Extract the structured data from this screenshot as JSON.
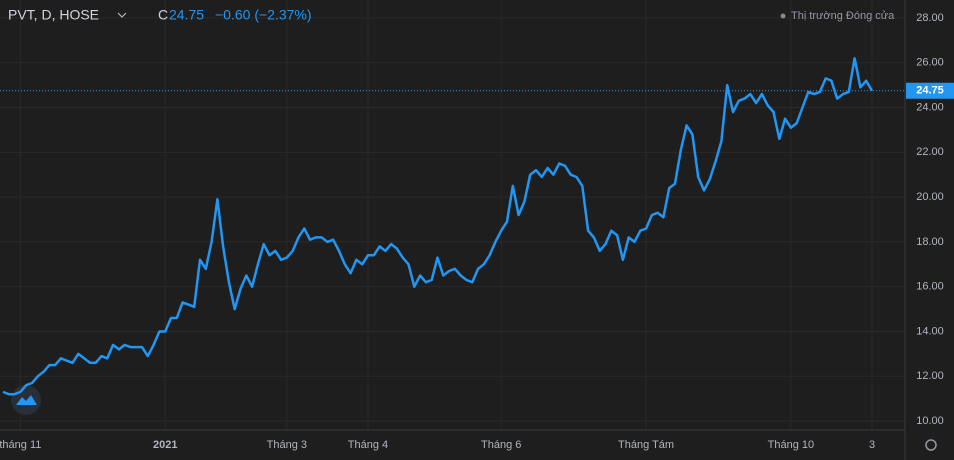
{
  "chart_data": {
    "type": "line",
    "title": "PVT, D, HOSE",
    "close_prefix": "C",
    "change_text": "−0.60 (−2.37%)",
    "market_status": "Thị trường Đóng cửa",
    "categories": [
      null,
      null,
      null,
      "tháng 11",
      null,
      null,
      null,
      null,
      null,
      null,
      null,
      null,
      null,
      null,
      null,
      null,
      null,
      null,
      null,
      null,
      null,
      null,
      null,
      null,
      null,
      null,
      null,
      null,
      "2021",
      null,
      null,
      null,
      null,
      null,
      null,
      null,
      null,
      null,
      null,
      null,
      null,
      null,
      null,
      null,
      null,
      null,
      null,
      null,
      null,
      "Tháng 3",
      null,
      null,
      null,
      null,
      null,
      null,
      null,
      null,
      null,
      null,
      null,
      null,
      null,
      "Tháng 4",
      null,
      null,
      null,
      null,
      null,
      null,
      null,
      null,
      null,
      null,
      null,
      null,
      null,
      null,
      null,
      null,
      null,
      null,
      null,
      null,
      null,
      null,
      "Tháng 6",
      null,
      null,
      null,
      null,
      null,
      null,
      null,
      null,
      null,
      null,
      null,
      null,
      null,
      null,
      null,
      null,
      null,
      null,
      null,
      null,
      null,
      null,
      null,
      null,
      "Tháng Tám",
      null,
      null,
      null,
      null,
      null,
      null,
      null,
      null,
      null,
      null,
      null,
      null,
      null,
      null,
      null,
      null,
      null,
      null,
      null,
      null,
      null,
      null,
      null,
      null,
      "Tháng 10",
      null,
      null,
      null,
      null,
      null,
      null,
      null,
      null,
      null,
      null,
      null,
      null,
      null,
      "3"
    ],
    "series": [
      {
        "color": "#2196f3",
        "values": [
          11.3,
          11.2,
          11.2,
          11.3,
          11.6,
          11.7,
          12.0,
          12.2,
          12.5,
          12.5,
          12.8,
          12.7,
          12.6,
          13.0,
          12.8,
          12.6,
          12.6,
          12.9,
          12.8,
          13.4,
          13.2,
          13.4,
          13.3,
          13.3,
          13.3,
          12.9,
          13.4,
          14.0,
          14.0,
          14.6,
          14.6,
          15.3,
          15.2,
          15.1,
          17.2,
          16.8,
          18.0,
          19.9,
          17.8,
          16.2,
          15.0,
          15.9,
          16.5,
          16.0,
          17.0,
          17.9,
          17.4,
          17.6,
          17.2,
          17.3,
          17.6,
          18.2,
          18.6,
          18.1,
          18.2,
          18.2,
          18.0,
          18.1,
          17.6,
          17.0,
          16.6,
          17.2,
          17.0,
          17.4,
          17.4,
          17.8,
          17.6,
          17.9,
          17.7,
          17.3,
          17.0,
          16.0,
          16.5,
          16.2,
          16.3,
          17.3,
          16.5,
          16.7,
          16.8,
          16.5,
          16.3,
          16.2,
          16.8,
          17.0,
          17.4,
          18.0,
          18.5,
          18.9,
          20.5,
          19.2,
          19.8,
          21.0,
          21.2,
          20.9,
          21.3,
          21.0,
          21.5,
          21.4,
          21.0,
          20.9,
          20.5,
          18.5,
          18.2,
          17.6,
          17.9,
          18.5,
          18.3,
          17.2,
          18.2,
          18.0,
          18.5,
          18.6,
          19.2,
          19.3,
          19.1,
          20.4,
          20.6,
          22.1,
          23.2,
          22.8,
          20.9,
          20.3,
          20.8,
          21.6,
          22.5,
          25.0,
          23.8,
          24.3,
          24.4,
          24.6,
          24.2,
          24.6,
          24.1,
          23.8,
          22.6,
          23.5,
          23.1,
          23.3,
          24.0,
          24.7,
          24.6,
          24.7,
          25.3,
          25.2,
          24.4,
          24.6,
          24.7,
          26.2,
          24.9,
          25.2,
          24.75
        ]
      }
    ],
    "ylim": [
      9.6,
      28.4
    ],
    "yticks": [
      {
        "value": 10,
        "label": "10.00"
      },
      {
        "value": 12,
        "label": "12.00"
      },
      {
        "value": 14,
        "label": "14.00"
      },
      {
        "value": 16,
        "label": "16.00"
      },
      {
        "value": 18,
        "label": "18.00"
      },
      {
        "value": 20,
        "label": "20.00"
      },
      {
        "value": 22,
        "label": "22.00"
      },
      {
        "value": 24,
        "label": "24.00"
      },
      {
        "value": 26,
        "label": "26.00"
      },
      {
        "value": 28,
        "label": "28.00"
      }
    ],
    "grid": true
  }
}
